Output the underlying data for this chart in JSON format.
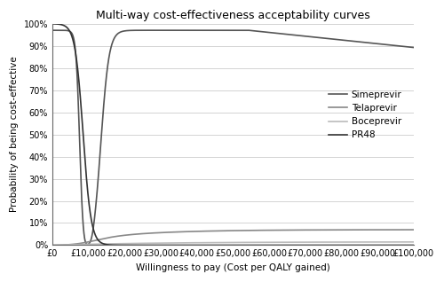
{
  "title": "Multi-way cost-effectiveness acceptability curves",
  "xlabel": "Willingness to pay (Cost per QALY gained)",
  "ylabel": "Probability of being cost-effective",
  "xlim": [
    0,
    100000
  ],
  "ylim": [
    0,
    1.0
  ],
  "xticks": [
    0,
    10000,
    20000,
    30000,
    40000,
    50000,
    60000,
    70000,
    80000,
    90000,
    100000
  ],
  "xtick_labels": [
    "£0",
    "£10,000",
    "£20,000",
    "£30,000",
    "£40,000",
    "£50,000",
    "£60,000",
    "£70,000",
    "£80,000",
    "£90,000",
    "£100,000"
  ],
  "yticks": [
    0.0,
    0.1,
    0.2,
    0.3,
    0.4,
    0.5,
    0.6,
    0.7,
    0.8,
    0.9,
    1.0
  ],
  "ytick_labels": [
    "0%",
    "10%",
    "20%",
    "30%",
    "40%",
    "50%",
    "60%",
    "70%",
    "80%",
    "90%",
    "100%"
  ],
  "series": [
    {
      "name": "Simeprevir",
      "color": "#555555",
      "linewidth": 1.2
    },
    {
      "name": "Telaprevir",
      "color": "#888888",
      "linewidth": 1.2
    },
    {
      "name": "Boceprevir",
      "color": "#bbbbbb",
      "linewidth": 1.2
    },
    {
      "name": "PR48",
      "color": "#333333",
      "linewidth": 1.2
    }
  ],
  "background_color": "#ffffff",
  "grid_color": "#cccccc",
  "title_fontsize": 9,
  "label_fontsize": 7.5,
  "tick_fontsize": 7,
  "legend_fontsize": 7.5
}
